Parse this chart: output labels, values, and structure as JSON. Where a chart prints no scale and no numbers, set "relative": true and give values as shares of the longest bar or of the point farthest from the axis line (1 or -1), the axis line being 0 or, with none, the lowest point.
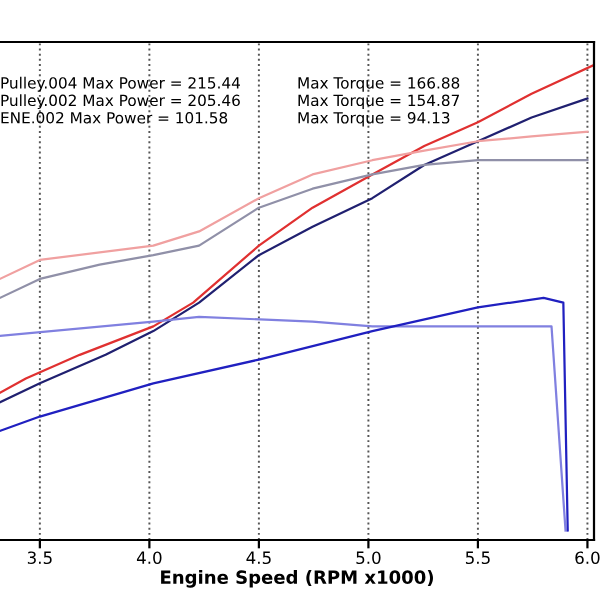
{
  "chart_data": {
    "type": "line",
    "relative": true,
    "xlabel": "Engine Speed (RPM x1000)",
    "xlim": [
      3.318,
      6.03
    ],
    "xticks": [
      3.5,
      {
        "value": 4,
        "label": "4.0"
      },
      4.5,
      {
        "value": 5,
        "label": "5.0"
      },
      5.5,
      {
        "value": 6,
        "label": "6.0"
      }
    ],
    "grid": true,
    "line_style": "solid",
    "annotations": [
      "Pulley.004 Max Power = 215.44",
      "Max Torque = 166.88",
      "Pulley.002 Max Power = 205.46",
      "Max Torque = 154.87",
      "ENE.002 Max Power = 101.58",
      "Max Torque = 94.13"
    ],
    "series": [
      {
        "color": "#e03030",
        "x": [
          3.318,
          3.436,
          3.682,
          4.018,
          4.2,
          4.5,
          4.745,
          5.018,
          5.255,
          5.5,
          5.745,
          6.027
        ],
        "values": [
          0.31,
          0.34,
          0.39,
          0.45,
          0.5,
          0.62,
          0.7,
          0.77,
          0.83,
          0.88,
          0.94,
          1.0
        ]
      },
      {
        "color": "#202070",
        "x": [
          3.318,
          3.5,
          3.8,
          4.018,
          4.227,
          4.5,
          4.745,
          5.018,
          5.255,
          5.5,
          5.745,
          6.0
        ],
        "values": [
          0.29,
          0.33,
          0.39,
          0.44,
          0.5,
          0.6,
          0.66,
          0.72,
          0.79,
          0.84,
          0.89,
          0.93
        ]
      },
      {
        "color": "#f0a0a0",
        "x": [
          3.318,
          3.5,
          4.018,
          4.227,
          4.5,
          4.745,
          5.018,
          5.255,
          5.5,
          5.745,
          6.0
        ],
        "values": [
          0.55,
          0.59,
          0.62,
          0.65,
          0.72,
          0.77,
          0.8,
          0.82,
          0.84,
          0.85,
          0.86
        ]
      },
      {
        "color": "#9090a8",
        "x": [
          3.318,
          3.5,
          3.773,
          4.018,
          4.227,
          4.5,
          4.745,
          5.018,
          5.255,
          5.5,
          5.745,
          6.0
        ],
        "values": [
          0.51,
          0.55,
          0.58,
          0.6,
          0.62,
          0.7,
          0.74,
          0.77,
          0.79,
          0.8,
          0.8,
          0.8
        ]
      },
      {
        "color": "#8080e0",
        "x": [
          3.318,
          4.018,
          4.227,
          4.745,
          5.018,
          5.5,
          5.836,
          5.9
        ],
        "values": [
          0.43,
          0.46,
          0.47,
          0.46,
          0.45,
          0.45,
          0.45,
          0.02
        ]
      },
      {
        "color": "#2020c0",
        "x": [
          3.318,
          3.5,
          4.018,
          4.5,
          5.018,
          5.5,
          5.8,
          5.89,
          5.91
        ],
        "values": [
          0.23,
          0.26,
          0.33,
          0.38,
          0.44,
          0.49,
          0.51,
          0.5,
          0.02
        ]
      }
    ]
  }
}
